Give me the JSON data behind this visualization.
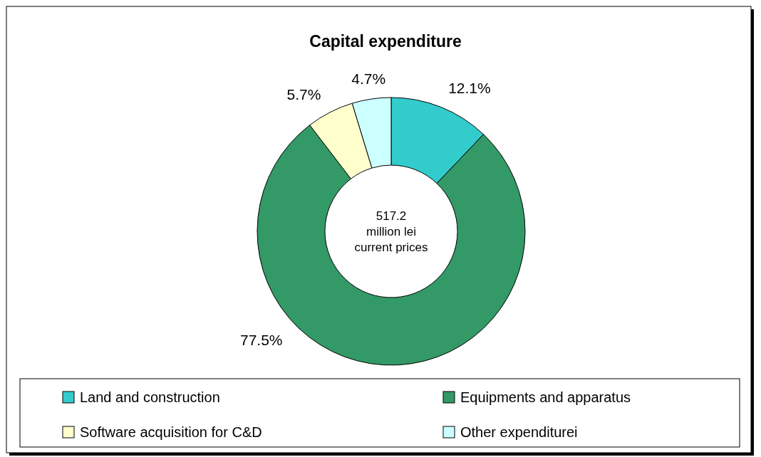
{
  "chart_data": {
    "type": "donut",
    "title": "Capital expenditure",
    "categories": [
      "Land and construction",
      "Equipments and apparatus",
      "Software acquisition for C&D",
      "Other expenditurei"
    ],
    "values": [
      12.1,
      77.5,
      5.7,
      4.7
    ],
    "colors": [
      "#33cccc",
      "#339966",
      "#ffffcc",
      "#ccffff"
    ],
    "value_labels": [
      "12.1%",
      "77.5%",
      "5.7%",
      "4.7%"
    ],
    "annotations": [
      "517.2\nmillion lei\ncurrent prices"
    ],
    "legend": "bottom"
  }
}
